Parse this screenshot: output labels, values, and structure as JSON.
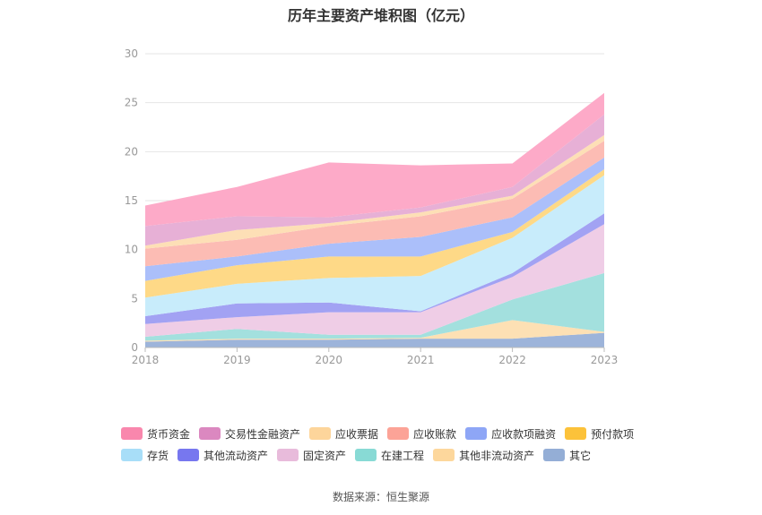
{
  "title": "历年主要资产堆积图（亿元）",
  "source": "数据来源：恒生聚源",
  "chart_data": {
    "type": "area",
    "stacked": true,
    "categories": [
      "2018",
      "2019",
      "2020",
      "2021",
      "2022",
      "2023"
    ],
    "ylim": [
      0,
      30
    ],
    "yticks": [
      0,
      5,
      10,
      15,
      20,
      25,
      30
    ],
    "grid": true,
    "legend_position": "bottom",
    "series": [
      {
        "name": "其它",
        "color": "#9db4da",
        "values": [
          0.6,
          0.8,
          0.8,
          0.9,
          0.9,
          1.5
        ]
      },
      {
        "name": "其他非流动资产",
        "color": "#fde0b4",
        "values": [
          0.1,
          0.1,
          0.1,
          0.1,
          1.9,
          0.1
        ]
      },
      {
        "name": "在建工程",
        "color": "#a3e0de",
        "values": [
          0.4,
          1.0,
          0.4,
          0.3,
          2.1,
          6.0
        ]
      },
      {
        "name": "固定资产",
        "color": "#efcde6",
        "values": [
          1.3,
          1.2,
          2.3,
          2.3,
          2.3,
          5.0
        ]
      },
      {
        "name": "其他流动资产",
        "color": "#a2a2f3",
        "values": [
          0.8,
          1.4,
          1.0,
          0.1,
          0.4,
          1.1
        ]
      },
      {
        "name": "存货",
        "color": "#c8ecfb",
        "values": [
          1.9,
          2.0,
          2.5,
          3.6,
          3.6,
          3.9
        ]
      },
      {
        "name": "预付款项",
        "color": "#fed987",
        "values": [
          1.7,
          1.9,
          2.2,
          2.0,
          0.6,
          0.6
        ]
      },
      {
        "name": "应收款项融资",
        "color": "#abbffa",
        "values": [
          1.5,
          0.9,
          1.3,
          2.0,
          1.5,
          1.2
        ]
      },
      {
        "name": "应收账款",
        "color": "#fcbcb4",
        "values": [
          1.8,
          1.7,
          1.8,
          2.1,
          1.9,
          1.7
        ]
      },
      {
        "name": "应收票据",
        "color": "#fddfb6",
        "values": [
          0.3,
          1.0,
          0.3,
          0.4,
          0.3,
          0.6
        ]
      },
      {
        "name": "交易性金融资产",
        "color": "#e7b0d6",
        "values": [
          2.0,
          1.4,
          0.6,
          0.5,
          0.9,
          2.1
        ]
      },
      {
        "name": "货币资金",
        "color": "#fdaac8",
        "values": [
          2.1,
          3.0,
          5.6,
          4.3,
          2.4,
          2.2
        ]
      }
    ],
    "legend": [
      [
        {
          "name": "货币资金",
          "color": "#f987ad"
        },
        {
          "name": "交易性金融资产",
          "color": "#db88c0"
        },
        {
          "name": "应收票据",
          "color": "#fdd59b"
        },
        {
          "name": "应收账款",
          "color": "#fca397"
        },
        {
          "name": "应收款项融资",
          "color": "#8ea6f6"
        },
        {
          "name": "预付款项",
          "color": "#fcc23a"
        }
      ],
      [
        {
          "name": "存货",
          "color": "#a8def8"
        },
        {
          "name": "其他流动资产",
          "color": "#7777ef"
        },
        {
          "name": "固定资产",
          "color": "#e8bbdb"
        },
        {
          "name": "在建工程",
          "color": "#88dad5"
        },
        {
          "name": "其他非流动资产",
          "color": "#fdd79c"
        },
        {
          "name": "其它",
          "color": "#94aed6"
        }
      ]
    ]
  }
}
